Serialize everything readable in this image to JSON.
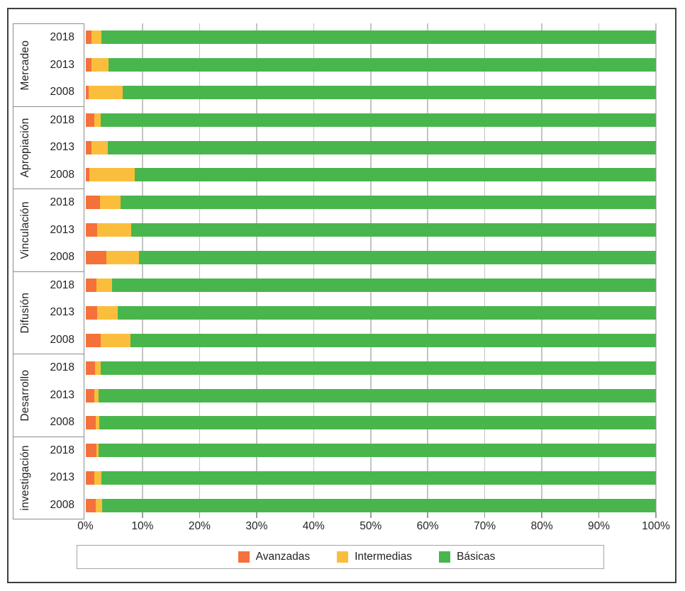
{
  "background_color": "#FFFFFF",
  "text_color": "#231F20",
  "frame_border_color": "#3E3E3E",
  "axis_box_border_color": "#8C8C8C",
  "gridline_color": "#C4C4C4",
  "legend_border_color": "#A5A5A5",
  "chart_data": {
    "type": "bar",
    "orientation": "horizontal",
    "stacked": true,
    "stack_total": 100,
    "title": "",
    "xlabel": "",
    "ylabel": "",
    "xlim": [
      0,
      100
    ],
    "grid": "vertical-10pct",
    "legend_position": "bottom",
    "x_tick_labels": [
      "0%",
      "10%",
      "20%",
      "30%",
      "40%",
      "50%",
      "60%",
      "70%",
      "80%",
      "90%",
      "100%"
    ],
    "series": [
      {
        "name": "Avanzadas",
        "color": "#F4713B"
      },
      {
        "name": "Intermedias",
        "color": "#FBBE3C"
      },
      {
        "name": "Básicas",
        "color": "#49B64D"
      }
    ],
    "groups": [
      {
        "label": "Mercadeo",
        "rows": [
          {
            "year": "2018",
            "values": [
              1.0,
              1.8,
              97.2
            ]
          },
          {
            "year": "2013",
            "values": [
              1.0,
              3.1,
              95.9
            ]
          },
          {
            "year": "2008",
            "values": [
              0.6,
              5.9,
              93.5
            ]
          }
        ]
      },
      {
        "label": "Apropiación",
        "rows": [
          {
            "year": "2018",
            "values": [
              1.5,
              1.2,
              97.3
            ]
          },
          {
            "year": "2013",
            "values": [
              1.0,
              2.9,
              96.1
            ]
          },
          {
            "year": "2008",
            "values": [
              0.7,
              8.0,
              91.3
            ]
          }
        ]
      },
      {
        "label": "Vinculación",
        "rows": [
          {
            "year": "2018",
            "values": [
              2.6,
              3.6,
              93.8
            ]
          },
          {
            "year": "2013",
            "values": [
              2.1,
              5.9,
              92.0
            ]
          },
          {
            "year": "2008",
            "values": [
              3.7,
              5.7,
              90.6
            ]
          }
        ]
      },
      {
        "label": "Difusión",
        "rows": [
          {
            "year": "2018",
            "values": [
              1.9,
              2.7,
              95.4
            ]
          },
          {
            "year": "2013",
            "values": [
              2.1,
              3.6,
              94.3
            ]
          },
          {
            "year": "2008",
            "values": [
              2.7,
              5.2,
              92.1
            ]
          }
        ]
      },
      {
        "label": "Desarrollo",
        "rows": [
          {
            "year": "2018",
            "values": [
              1.7,
              1.0,
              97.3
            ]
          },
          {
            "year": "2013",
            "values": [
              1.6,
              0.7,
              97.7
            ]
          },
          {
            "year": "2008",
            "values": [
              1.8,
              0.6,
              97.6
            ]
          }
        ]
      },
      {
        "label": "investigación",
        "rows": [
          {
            "year": "2018",
            "values": [
              1.9,
              0.4,
              97.7
            ]
          },
          {
            "year": "2013",
            "values": [
              1.6,
              1.2,
              97.2
            ]
          },
          {
            "year": "2008",
            "values": [
              1.8,
              1.1,
              97.1
            ]
          }
        ]
      }
    ]
  }
}
